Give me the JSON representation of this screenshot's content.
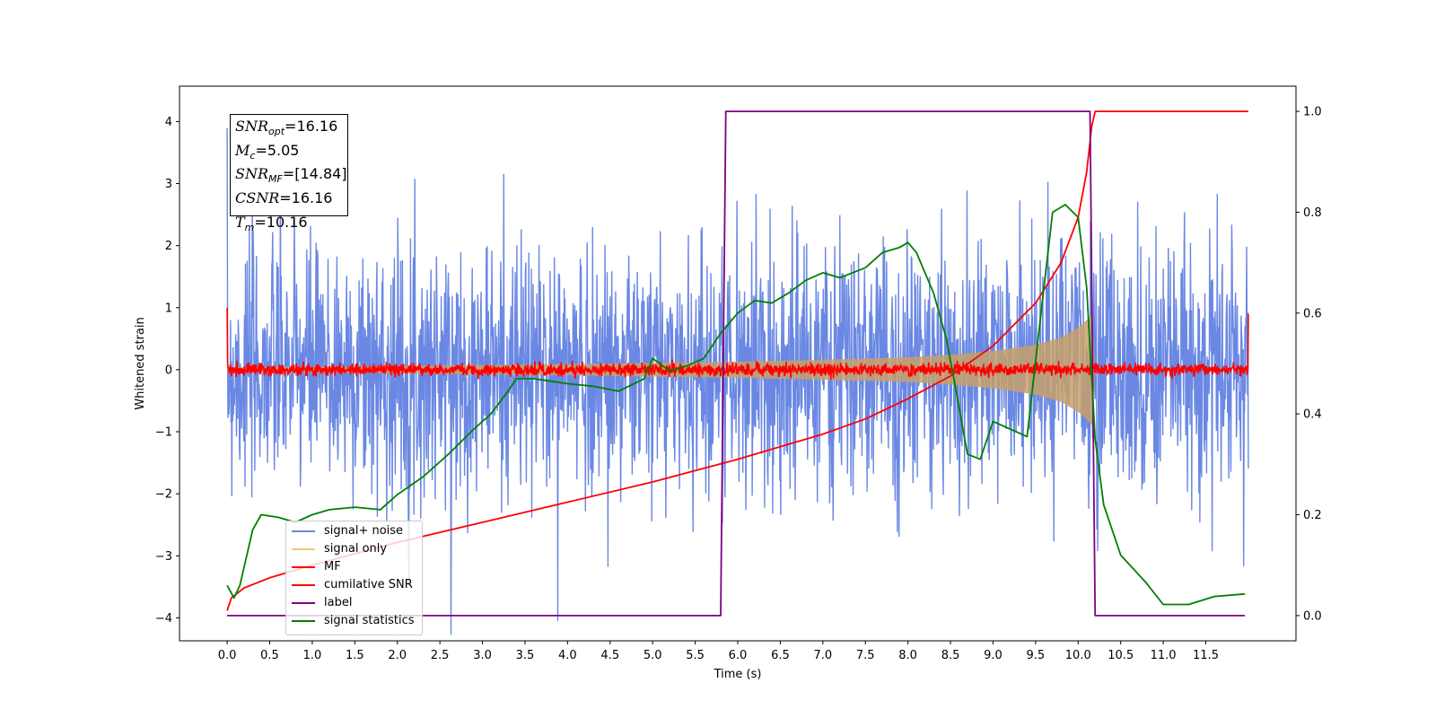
{
  "chart_data": {
    "type": "line",
    "xlabel": "Time (s)",
    "ylabel": "Whitened strain",
    "xlim": [
      -0.56,
      12.56
    ],
    "ylim": [
      -4.37,
      4.57
    ],
    "y2lim": [
      -0.05,
      1.05
    ],
    "xticks": [
      "0.0",
      "0.5",
      "1.0",
      "1.5",
      "2.0",
      "2.5",
      "3.0",
      "3.5",
      "4.0",
      "4.5",
      "5.0",
      "5.5",
      "6.0",
      "6.5",
      "7.0",
      "7.5",
      "8.0",
      "8.5",
      "9.0",
      "9.5",
      "10.0",
      "10.5",
      "11.0",
      "11.5"
    ],
    "yticks": [
      "−4",
      "−3",
      "−2",
      "−1",
      "0",
      "1",
      "2",
      "3",
      "4"
    ],
    "y2ticks": [
      "0.0",
      "0.2",
      "0.4",
      "0.6",
      "0.8",
      "1.0"
    ],
    "annotation": [
      {
        "name": "SNR",
        "sub": "opt",
        "value": "=16.16"
      },
      {
        "name": "M",
        "sub": "c",
        "value": "=5.05"
      },
      {
        "name": "SNR",
        "sub": "MF",
        "value": "=[14.84]"
      },
      {
        "name": "CSNR",
        "sub": "",
        "value": "=16.16"
      },
      {
        "name": "T",
        "sub": "m",
        "value": "=10.16"
      }
    ],
    "legend_position": "lower-left",
    "series": [
      {
        "name": "signal+ noise",
        "color": "#6a88e3",
        "axis": "left",
        "kind": "noise",
        "std": 1.0,
        "x_range": [
          0.0,
          12.0
        ]
      },
      {
        "name": "signal only",
        "color": "#f5c77a",
        "axis": "left",
        "kind": "chirp",
        "x": [
          0.0,
          2.0,
          4.0,
          6.0,
          7.0,
          8.0,
          8.5,
          9.0,
          9.5,
          9.8,
          10.0,
          10.1,
          10.16,
          10.2
        ],
        "amplitude": [
          0.04,
          0.06,
          0.09,
          0.13,
          0.16,
          0.2,
          0.24,
          0.3,
          0.4,
          0.52,
          0.68,
          0.8,
          0.9,
          0.0
        ]
      },
      {
        "name": "MF",
        "color": "#ff0000",
        "axis": "left",
        "kind": "noise",
        "std": 0.05,
        "x_range": [
          0.0,
          12.0
        ],
        "edges": [
          [
            0.0,
            1.0
          ],
          [
            12.0,
            0.9
          ]
        ]
      },
      {
        "name": "cumilative SNR",
        "color": "#ff0000",
        "axis": "right",
        "x": [
          0.0,
          0.05,
          0.2,
          0.5,
          1.0,
          2.0,
          3.0,
          4.0,
          5.0,
          6.0,
          7.0,
          7.5,
          8.0,
          8.5,
          9.0,
          9.5,
          9.8,
          10.0,
          10.1,
          10.16,
          10.2,
          12.0
        ],
        "y": [
          0.01,
          0.035,
          0.055,
          0.075,
          0.1,
          0.145,
          0.185,
          0.225,
          0.265,
          0.31,
          0.36,
          0.39,
          0.43,
          0.475,
          0.535,
          0.62,
          0.7,
          0.79,
          0.88,
          0.97,
          1.0,
          1.0
        ]
      },
      {
        "name": "label",
        "color": "#800080",
        "axis": "right",
        "x": [
          0.0,
          5.8,
          5.86,
          10.14,
          10.2,
          11.96
        ],
        "y": [
          0.0,
          0.0,
          1.0,
          1.0,
          0.0,
          0.0
        ]
      },
      {
        "name": "signal statistics",
        "color": "#008000",
        "axis": "right",
        "x": [
          0.0,
          0.08,
          0.15,
          0.3,
          0.4,
          0.6,
          0.8,
          1.0,
          1.2,
          1.5,
          1.8,
          2.0,
          2.3,
          2.6,
          2.9,
          3.1,
          3.3,
          3.4,
          3.6,
          3.8,
          4.0,
          4.3,
          4.6,
          4.9,
          5.0,
          5.2,
          5.4,
          5.6,
          5.8,
          6.0,
          6.2,
          6.4,
          6.6,
          6.8,
          7.0,
          7.2,
          7.5,
          7.7,
          7.9,
          8.0,
          8.1,
          8.3,
          8.45,
          8.55,
          8.7,
          8.85,
          9.0,
          9.2,
          9.4,
          9.55,
          9.7,
          9.85,
          10.0,
          10.1,
          10.2,
          10.3,
          10.5,
          10.8,
          11.0,
          11.3,
          11.6,
          11.96
        ],
        "y": [
          0.06,
          0.035,
          0.06,
          0.17,
          0.2,
          0.195,
          0.185,
          0.2,
          0.21,
          0.215,
          0.21,
          0.24,
          0.275,
          0.32,
          0.37,
          0.4,
          0.445,
          0.47,
          0.47,
          0.465,
          0.46,
          0.455,
          0.445,
          0.47,
          0.51,
          0.485,
          0.495,
          0.51,
          0.56,
          0.6,
          0.625,
          0.62,
          0.64,
          0.665,
          0.68,
          0.67,
          0.69,
          0.72,
          0.73,
          0.74,
          0.72,
          0.64,
          0.55,
          0.46,
          0.32,
          0.31,
          0.385,
          0.37,
          0.355,
          0.58,
          0.8,
          0.815,
          0.79,
          0.65,
          0.35,
          0.22,
          0.12,
          0.065,
          0.022,
          0.022,
          0.038,
          0.043
        ]
      }
    ]
  }
}
